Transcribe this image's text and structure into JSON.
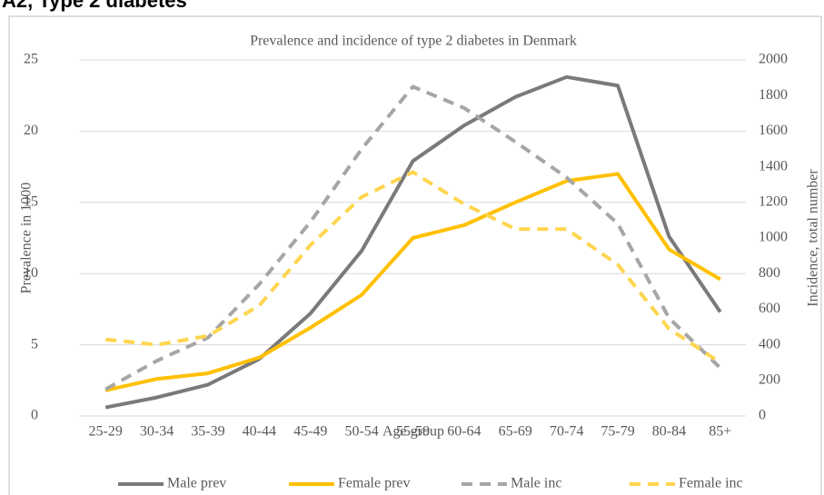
{
  "header": "A2, Type 2 diabetes",
  "chart_data": {
    "type": "line",
    "title": "Prevalence and incidence of type 2 diabetes in Denmark",
    "xlabel": "Age group",
    "ylabel": "Prevalence in 1000",
    "y2label": "Incidence, total number",
    "categories": [
      "25-29",
      "30-34",
      "35-39",
      "40-44",
      "45-49",
      "50-54",
      "55-59",
      "60-64",
      "65-69",
      "70-74",
      "75-79",
      "80-84",
      "85+"
    ],
    "ylim": [
      0,
      25
    ],
    "yticks": [
      0,
      5,
      10,
      15,
      20,
      25
    ],
    "y2lim": [
      0,
      2000
    ],
    "y2ticks": [
      0,
      200,
      400,
      600,
      800,
      1000,
      1200,
      1400,
      1600,
      1800,
      2000
    ],
    "grid": true,
    "legend": "bottom",
    "series": [
      {
        "name": "Male prev",
        "color": "#7a7a7a",
        "dashed": false,
        "values": [
          0.6,
          1.3,
          2.2,
          4.0,
          7.2,
          11.6,
          17.9,
          20.4,
          22.4,
          23.8,
          23.2,
          12.6,
          7.3
        ]
      },
      {
        "name": "Female prev",
        "color": "#ffc000",
        "dashed": false,
        "values": [
          1.8,
          2.6,
          3.0,
          4.1,
          6.2,
          8.5,
          12.5,
          13.4,
          15.0,
          16.5,
          17.0,
          11.7,
          9.6
        ]
      },
      {
        "name": "Male inc",
        "color": "#a6a6a6",
        "dashed": true,
        "axis": "y2",
        "values": [
          150,
          310,
          440,
          740,
          1090,
          1500,
          1850,
          1730,
          1540,
          1340,
          1080,
          550,
          270
        ]
      },
      {
        "name": "Female inc",
        "color": "#ffd54f",
        "dashed": true,
        "axis": "y2",
        "values": [
          430,
          400,
          450,
          620,
          960,
          1230,
          1370,
          1190,
          1050,
          1050,
          850,
          490,
          300
        ]
      }
    ]
  }
}
